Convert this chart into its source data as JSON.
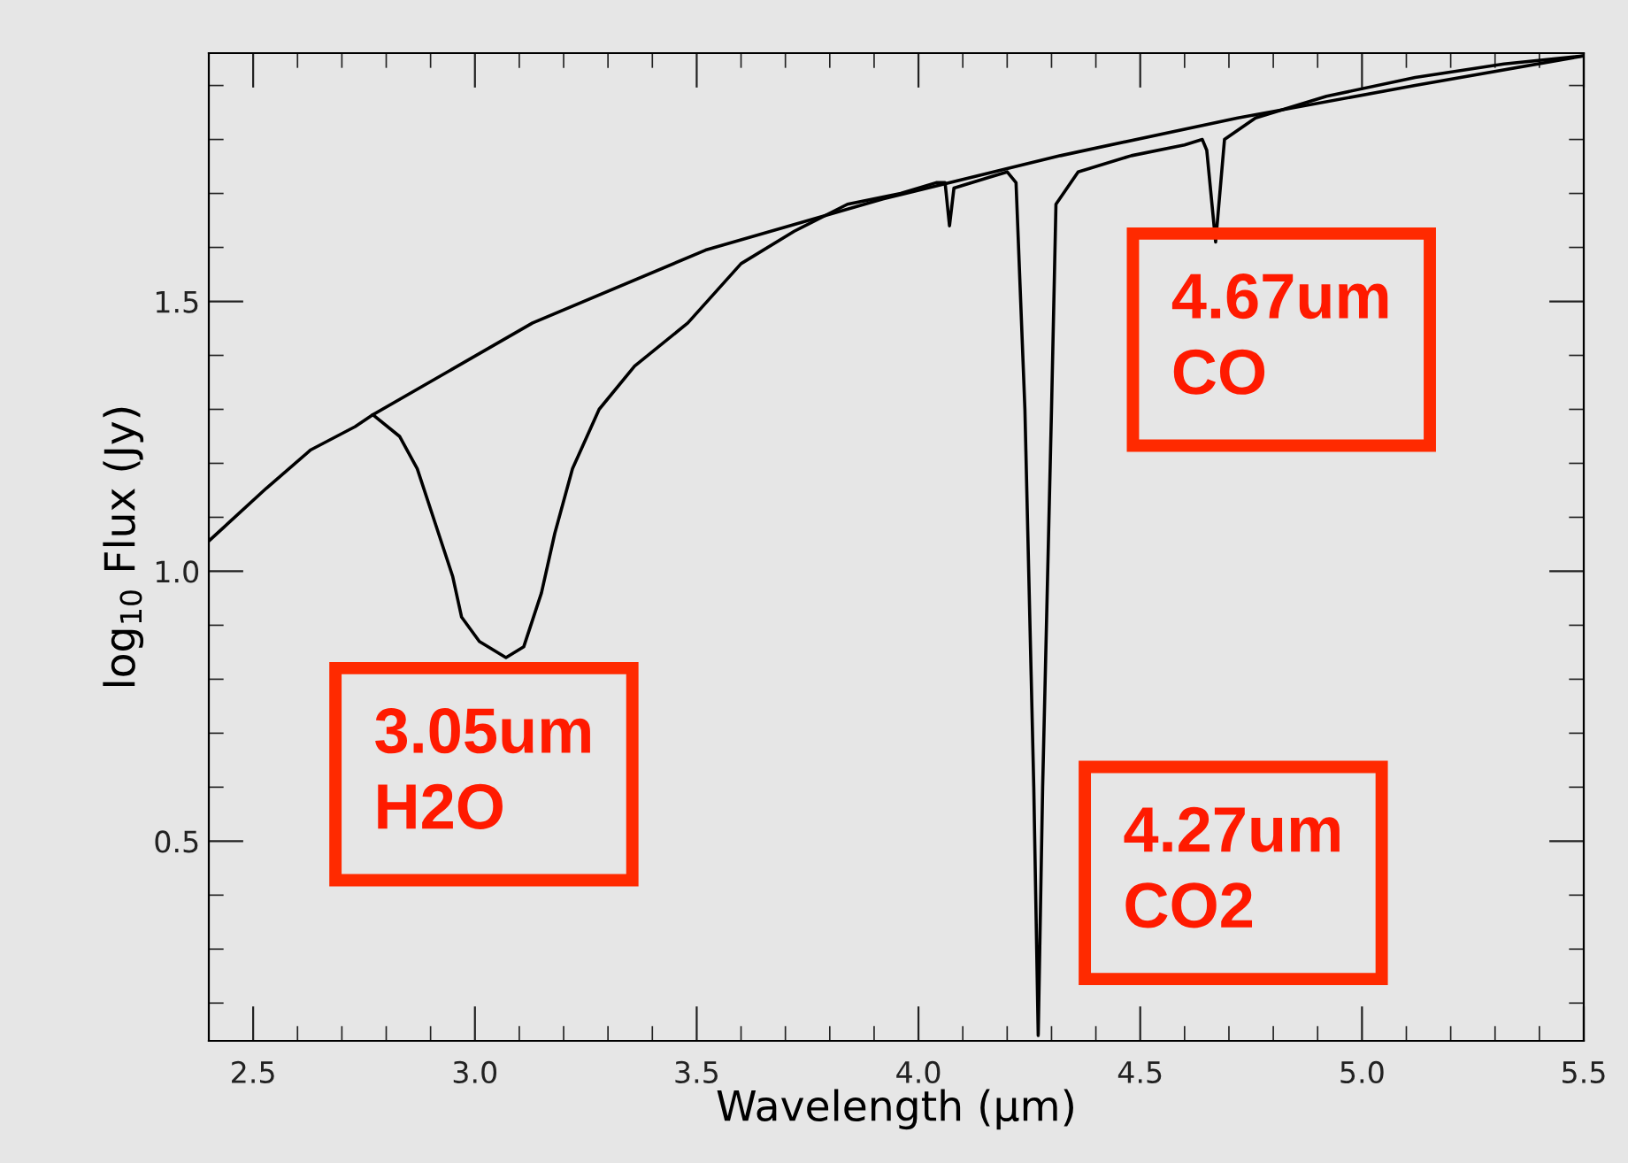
{
  "chart_data": {
    "type": "line",
    "xlabel": "Wavelength (μm)",
    "ylabel": "log$_{10}$ Flux (Jy)",
    "xlim": [
      2.4,
      5.5
    ],
    "xticks": [
      {
        "value": 2.5,
        "label": "2.5"
      },
      {
        "value": 3.0,
        "label": "3.0"
      },
      {
        "value": 3.5,
        "label": "3.5"
      },
      {
        "value": 4.0,
        "label": "4.0"
      },
      {
        "value": 4.5,
        "label": "4.5"
      },
      {
        "value": 5.0,
        "label": "5.0"
      },
      {
        "value": 5.5,
        "label": "5.5"
      }
    ],
    "ylim": [
      0.13,
      1.96
    ],
    "yticks": [
      {
        "value": 0.5,
        "label": "0.5"
      },
      {
        "value": 1.0,
        "label": "1.0"
      },
      {
        "value": 1.5,
        "label": "1.5"
      }
    ],
    "grid": false,
    "legend": false,
    "series": [
      {
        "color": "#000000",
        "x": [
          2.4,
          2.53,
          2.63,
          2.73,
          2.77,
          2.83,
          2.87,
          2.91,
          2.95,
          2.97,
          3.01,
          3.07,
          3.11,
          3.15,
          3.18,
          3.22,
          3.28,
          3.36,
          3.48,
          3.6,
          3.72,
          3.84,
          3.96,
          4.04,
          4.06,
          4.07,
          4.08,
          4.16,
          4.2,
          4.22,
          4.24,
          4.26,
          4.27,
          4.28,
          4.3,
          4.31,
          4.36,
          4.48,
          4.6,
          4.64,
          4.65,
          4.67,
          4.69,
          4.76,
          4.92,
          5.12,
          5.32,
          5.5
        ],
        "values": [
          1.056,
          1.154,
          1.225,
          1.268,
          1.29,
          1.25,
          1.19,
          1.09,
          0.99,
          0.915,
          0.87,
          0.84,
          0.86,
          0.96,
          1.07,
          1.19,
          1.3,
          1.38,
          1.46,
          1.57,
          1.63,
          1.68,
          1.7,
          1.72,
          1.72,
          1.64,
          1.71,
          1.73,
          1.74,
          1.72,
          1.3,
          0.6,
          0.14,
          0.6,
          1.3,
          1.68,
          1.74,
          1.77,
          1.79,
          1.8,
          1.78,
          1.61,
          1.8,
          1.84,
          1.88,
          1.915,
          1.94,
          1.955
        ]
      },
      {
        "color": "#000000",
        "x": [
          2.77,
          3.13,
          3.52,
          3.92,
          4.32,
          4.72,
          5.12,
          5.5
        ],
        "values": [
          1.29,
          1.46,
          1.595,
          1.69,
          1.77,
          1.84,
          1.9,
          1.955
        ]
      }
    ],
    "annotations": [
      "3.05um\nH2O",
      "4.27um\nCO2",
      "4.67um\nCO"
    ]
  }
}
